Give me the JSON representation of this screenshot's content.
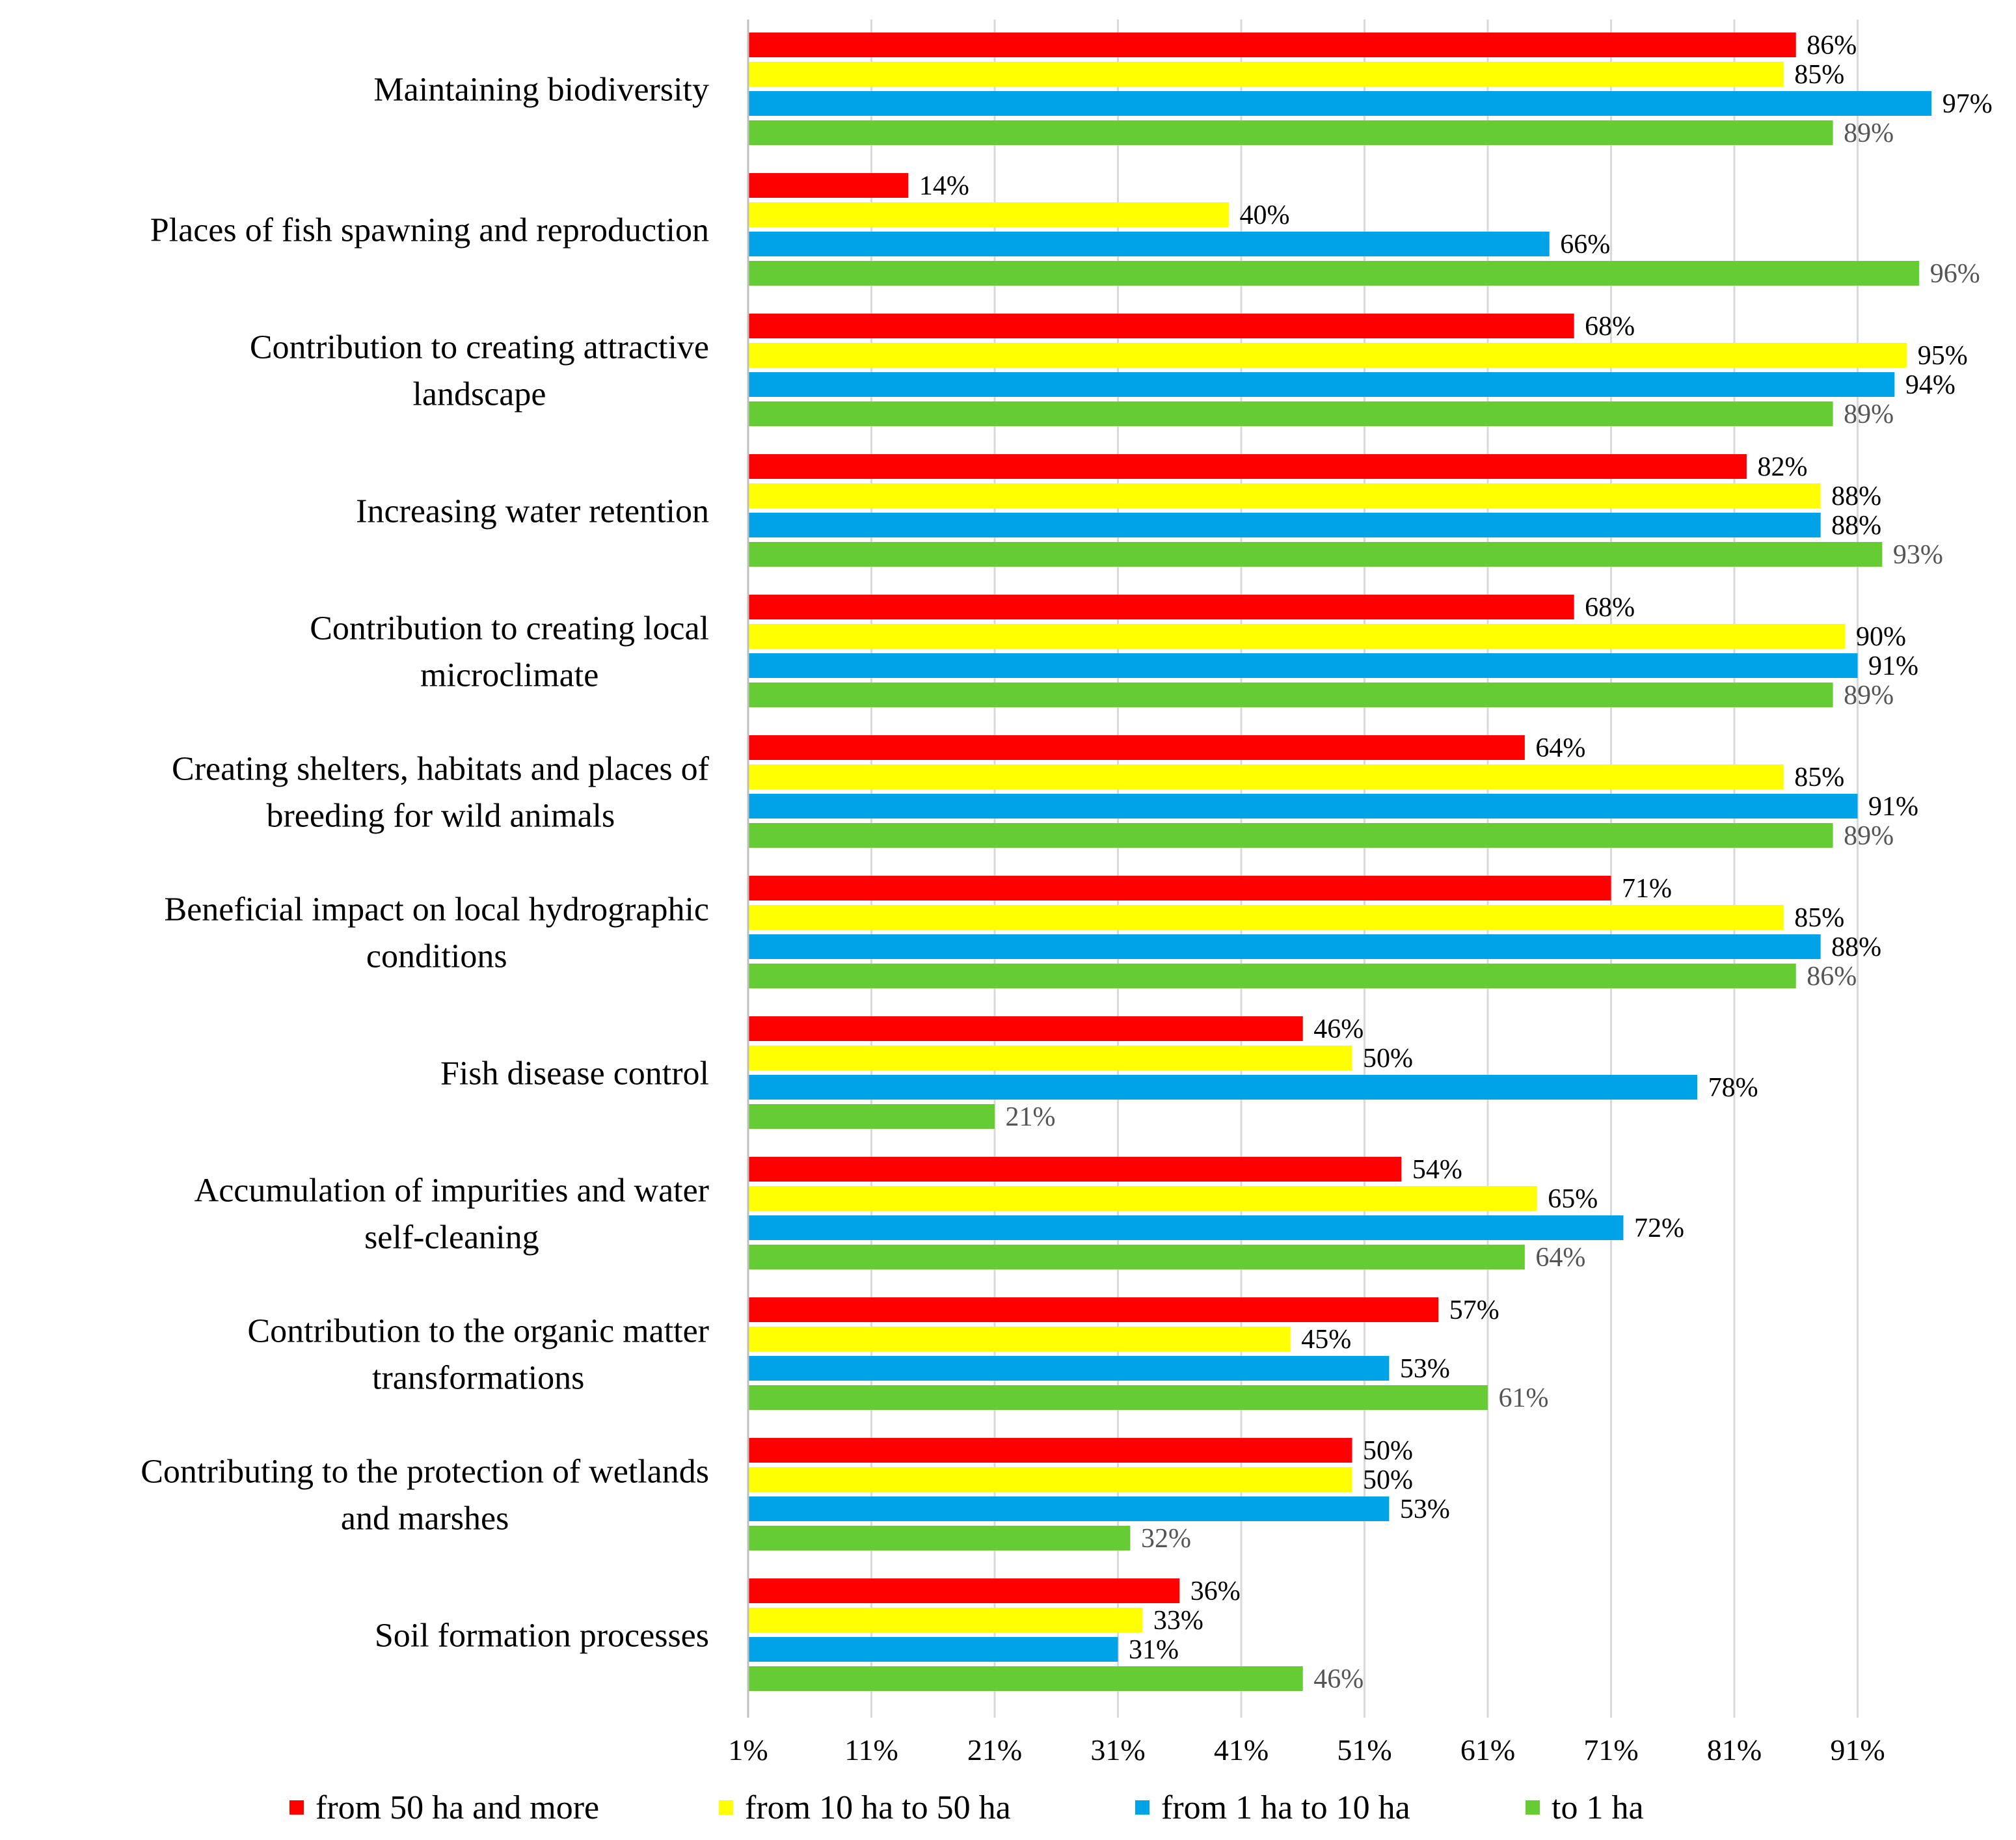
{
  "chart_data": {
    "type": "bar",
    "orientation": "horizontal",
    "title": "",
    "xlabel": "",
    "ylabel": "",
    "xlim": [
      1,
      100
    ],
    "x_ticks": [
      1,
      11,
      21,
      31,
      41,
      51,
      61,
      71,
      81,
      91
    ],
    "x_tick_labels": [
      "1%",
      "11%",
      "21%",
      "31%",
      "41%",
      "51%",
      "61%",
      "71%",
      "81%",
      "91%"
    ],
    "grid": "vertical",
    "legend_position": "bottom",
    "categories": [
      [
        "Maintaining biodiversity"
      ],
      [
        "Places of fish spawning and reproduction"
      ],
      [
        "Contribution to creating attractive",
        "landscape"
      ],
      [
        "Increasing water retention"
      ],
      [
        "Contribution to creating local",
        "microclimate"
      ],
      [
        "Creating shelters, habitats and places of",
        "breeding for wild animals"
      ],
      [
        "Beneficial impact on local hydrographic",
        "conditions"
      ],
      [
        "Fish disease control"
      ],
      [
        "Accumulation of impurities and water",
        "self-cleaning"
      ],
      [
        "Contribution to the organic matter",
        "transformations"
      ],
      [
        "Contributing to the protection of wetlands",
        "and marshes"
      ],
      [
        "Soil formation processes"
      ]
    ],
    "series": [
      {
        "name": "from 50 ha and more",
        "color": "#ff0000",
        "label_color": "#000000",
        "values": [
          86,
          14,
          68,
          82,
          68,
          64,
          71,
          46,
          54,
          57,
          50,
          36
        ]
      },
      {
        "name": "from 10 ha to 50 ha",
        "color": "#ffff00",
        "label_color": "#000000",
        "values": [
          85,
          40,
          95,
          88,
          90,
          85,
          85,
          50,
          65,
          45,
          50,
          33
        ]
      },
      {
        "name": "from 1 ha to 10 ha",
        "color": "#00a2e8",
        "label_color": "#000000",
        "values": [
          97,
          66,
          94,
          88,
          91,
          91,
          88,
          78,
          72,
          53,
          53,
          31
        ]
      },
      {
        "name": "to 1 ha",
        "color": "#66cc33",
        "label_color": "#555555",
        "values": [
          89,
          96,
          89,
          93,
          89,
          89,
          86,
          21,
          64,
          61,
          32,
          46
        ]
      }
    ]
  }
}
